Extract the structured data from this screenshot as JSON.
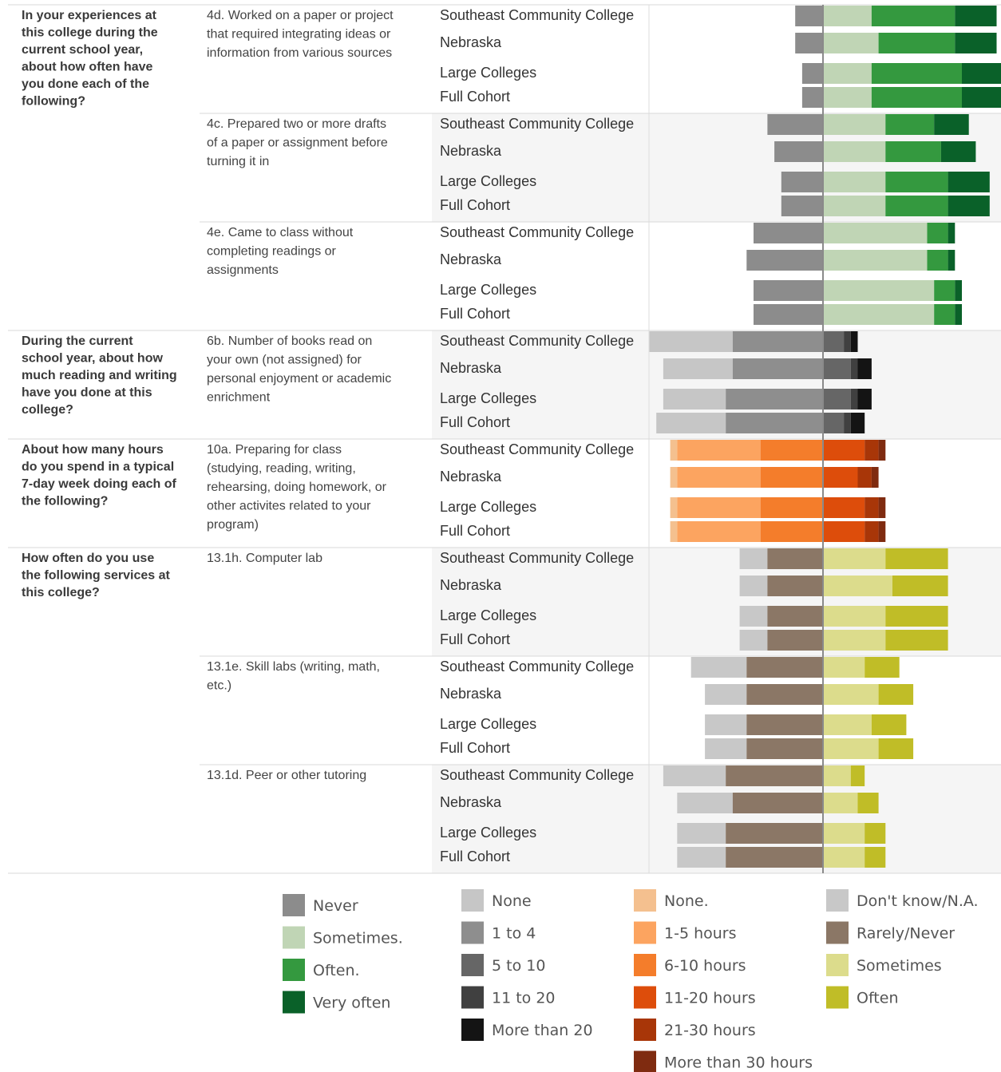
{
  "chart_data": {
    "type": "bar",
    "orientation": "horizontal-diverging",
    "groups": [
      "Southeast Community College",
      "Nebraska",
      "Large Colleges",
      "Full Cohort"
    ],
    "sections": [
      {
        "question": [
          "In your experiences at",
          "this college during the",
          "current school year,",
          "about how often have",
          "you done each of the",
          "following?"
        ],
        "items": [
          {
            "label": [
              "4d. Worked on a paper or project",
              "that required integrating ideas or",
              "information from various sources"
            ],
            "scale": "freq4",
            "values": [
              [
                4,
                7,
                12,
                6
              ],
              [
                4,
                8,
                11,
                6
              ],
              [
                3,
                7,
                13,
                7
              ],
              [
                3,
                7,
                13,
                7
              ]
            ]
          },
          {
            "label": [
              "4c. Prepared two or more drafts",
              "of a paper or assignment before",
              "turning it in"
            ],
            "scale": "freq4",
            "values": [
              [
                8,
                9,
                7,
                5
              ],
              [
                7,
                9,
                8,
                5
              ],
              [
                6,
                9,
                9,
                6
              ],
              [
                6,
                9,
                9,
                6
              ]
            ]
          },
          {
            "label": [
              "4e. Came to class without",
              "completing readings or",
              "assignments"
            ],
            "scale": "freq4",
            "values": [
              [
                10,
                15,
                3,
                1
              ],
              [
                11,
                15,
                3,
                1
              ],
              [
                10,
                16,
                3,
                1
              ],
              [
                10,
                16,
                3,
                1
              ]
            ]
          }
        ]
      },
      {
        "question": [
          "During the current",
          "school year, about how",
          "much reading and writing",
          "have you done at this",
          "college?"
        ],
        "items": [
          {
            "label": [
              "6b. Number of books read on",
              "your own (not assigned) for",
              "personal enjoyment or academic",
              "enrichment"
            ],
            "scale": "books5",
            "values": [
              [
                12,
                13,
                3,
                1,
                1
              ],
              [
                10,
                13,
                4,
                1,
                2
              ],
              [
                9,
                14,
                4,
                1,
                2
              ],
              [
                10,
                14,
                3,
                1,
                2
              ]
            ]
          }
        ]
      },
      {
        "question": [
          "About how many hours",
          "do you spend in a typical",
          "7-day week doing each of",
          "the following?"
        ],
        "items": [
          {
            "label": [
              "10a. Preparing for class",
              "(studying, reading, writing,",
              "rehearsing, doing homework, or",
              "other activites related to your",
              "program)"
            ],
            "scale": "hours6",
            "values": [
              [
                1,
                12,
                9,
                6,
                2,
                1
              ],
              [
                1,
                12,
                9,
                5,
                2,
                1
              ],
              [
                1,
                12,
                9,
                6,
                2,
                1
              ],
              [
                1,
                12,
                9,
                6,
                2,
                1
              ]
            ]
          }
        ]
      },
      {
        "question": [
          "How often do you use",
          "the following services at",
          "this college?"
        ],
        "items": [
          {
            "label": [
              "13.1h. Computer lab"
            ],
            "scale": "use4",
            "values": [
              [
                4,
                8,
                9,
                9
              ],
              [
                4,
                8,
                10,
                8
              ],
              [
                4,
                8,
                9,
                9
              ],
              [
                4,
                8,
                9,
                9
              ]
            ]
          },
          {
            "label": [
              "13.1e. Skill labs (writing, math,",
              "etc.)"
            ],
            "scale": "use4",
            "values": [
              [
                8,
                11,
                6,
                5
              ],
              [
                6,
                11,
                8,
                5
              ],
              [
                6,
                11,
                7,
                5
              ],
              [
                6,
                11,
                8,
                5
              ]
            ]
          },
          {
            "label": [
              "13.1d. Peer or other tutoring"
            ],
            "scale": "use4",
            "values": [
              [
                9,
                14,
                4,
                2
              ],
              [
                8,
                13,
                5,
                3
              ],
              [
                7,
                14,
                6,
                3
              ],
              [
                7,
                14,
                6,
                3
              ]
            ]
          }
        ]
      }
    ],
    "scales": {
      "freq4": {
        "neg": 1,
        "labels": [
          "Never",
          "Sometimes.",
          "Often.",
          "Very often"
        ],
        "colors": [
          "#8c8c8c",
          "#c0d5b5",
          "#34993f",
          "#0a6129"
        ]
      },
      "books5": {
        "neg": 2,
        "labels": [
          "None",
          "1 to 4",
          "5 to 10",
          "11 to 20",
          "More than 20"
        ],
        "colors": [
          "#c6c6c6",
          "#8e8e8e",
          "#666666",
          "#404040",
          "#141414"
        ]
      },
      "hours6": {
        "neg": 3,
        "labels": [
          "None.",
          "1-5 hours",
          "6-10 hours",
          "11-20 hours",
          "21-30 hours",
          "More than 30 hours"
        ],
        "colors": [
          "#f4c08f",
          "#fca460",
          "#f47d2b",
          "#dd4d0b",
          "#a83608",
          "#7f2b10"
        ]
      },
      "use4": {
        "neg": 2,
        "labels": [
          "Don't know/N.A.",
          "Rarely/Never",
          "Sometimes",
          "Often"
        ],
        "colors": [
          "#c8c8c8",
          "#8b7766",
          "#dcdc8c",
          "#c0bd27"
        ]
      }
    },
    "legend_order": [
      "freq4",
      "books5",
      "hours6",
      "use4"
    ],
    "legend_position": "bottom"
  }
}
